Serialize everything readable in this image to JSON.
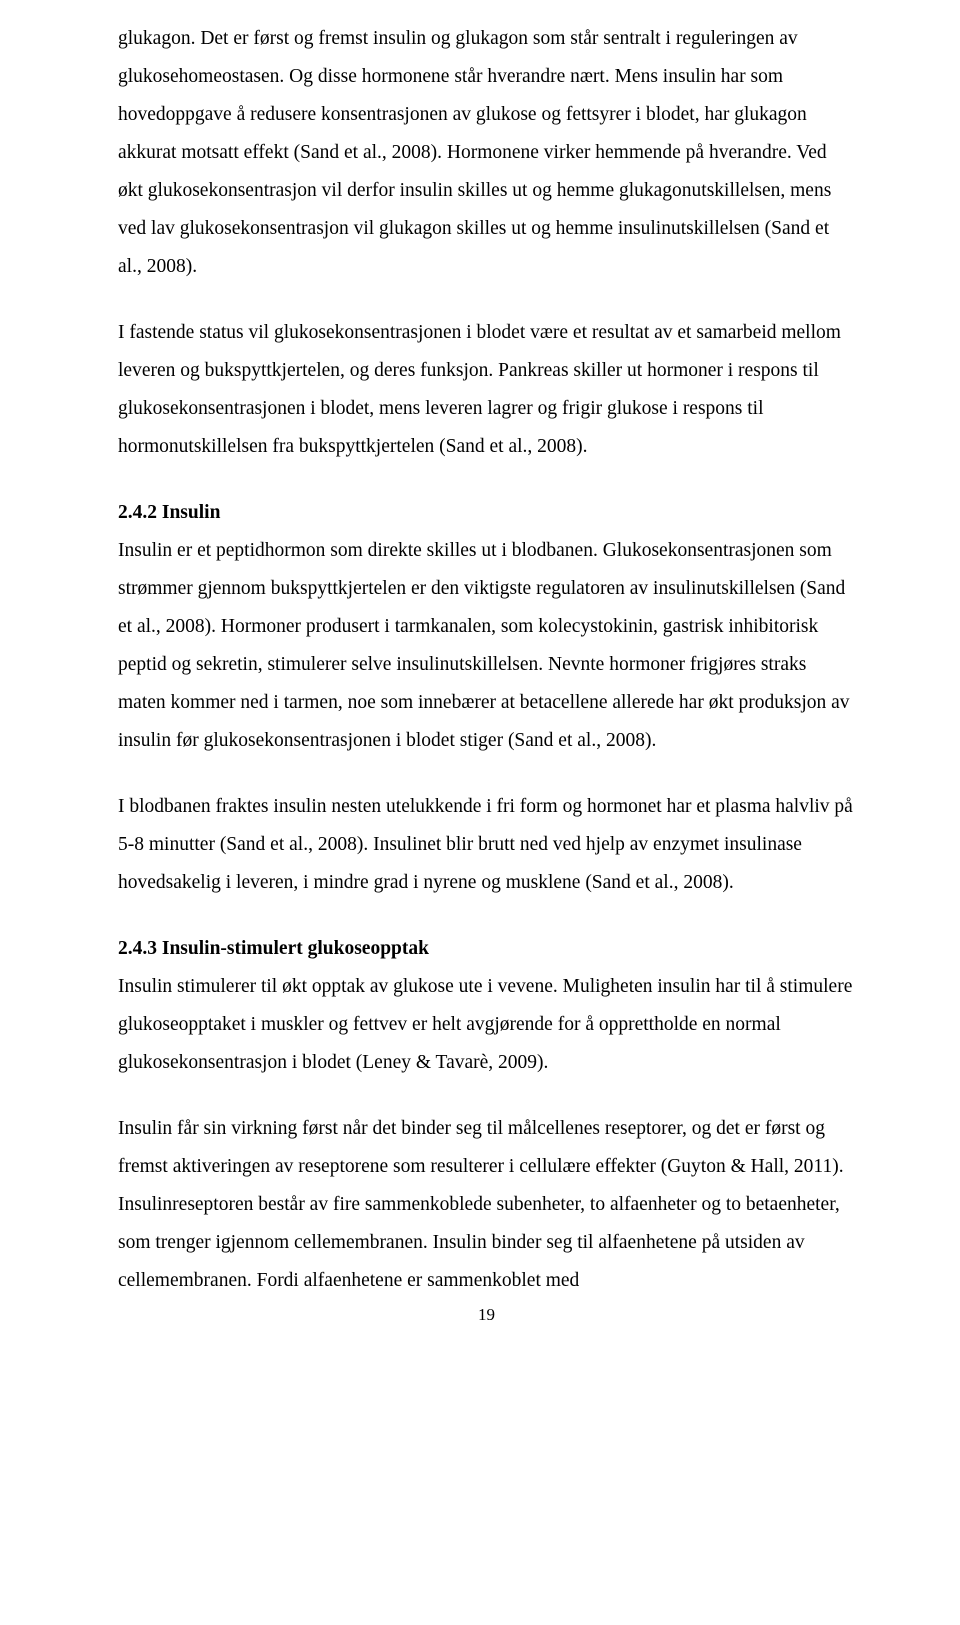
{
  "paragraphs": {
    "p1": "glukagon. Det er først og fremst insulin og glukagon som står sentralt i reguleringen av glukosehomeostasen. Og disse hormonene står hverandre nært. Mens insulin har som hovedoppgave å redusere konsentrasjonen av glukose og fettsyrer i blodet, har glukagon akkurat motsatt effekt (Sand et al., 2008). Hormonene virker hemmende på hverandre. Ved økt glukosekonsentrasjon vil derfor insulin skilles ut og hemme glukagonutskillelsen, mens ved lav glukosekonsentrasjon vil glukagon skilles ut og hemme insulinutskillelsen (Sand et al., 2008).",
    "p2": "I fastende status vil glukosekonsentrasjonen i blodet være et resultat av et samarbeid mellom leveren og bukspyttkjertelen, og deres funksjon. Pankreas skiller ut hormoner i respons til glukosekonsentrasjonen i blodet, mens leveren lagrer og frigir glukose i respons til hormonutskillelsen fra bukspyttkjertelen (Sand et al., 2008).",
    "h1": "2.4.2 Insulin",
    "p3": "Insulin er et peptidhormon som direkte skilles ut i blodbanen. Glukosekonsentrasjonen som strømmer gjennom bukspyttkjertelen er den viktigste regulatoren av insulinutskillelsen (Sand et al., 2008). Hormoner produsert i tarmkanalen, som kolecystokinin, gastrisk inhibitorisk peptid og sekretin, stimulerer selve insulinutskillelsen. Nevnte hormoner frigjøres straks maten kommer ned i tarmen, noe som innebærer at betacellene allerede har økt produksjon av insulin før glukosekonsentrasjonen i blodet stiger (Sand et al., 2008).",
    "p4": "I blodbanen fraktes insulin nesten utelukkende i fri form og hormonet har et plasma halvliv på 5-8 minutter (Sand et al., 2008). Insulinet blir brutt ned ved hjelp av enzymet insulinase hovedsakelig i leveren, i mindre grad i nyrene og musklene (Sand et al., 2008).",
    "h2": "2.4.3 Insulin-stimulert glukoseopptak",
    "p5": "Insulin stimulerer til økt opptak av glukose ute i vevene. Muligheten insulin har til å stimulere glukoseopptaket i muskler og fettvev er helt avgjørende for å opprettholde en normal glukosekonsentrasjon i blodet (Leney & Tavarè, 2009).",
    "p6": "Insulin får sin virkning først når det binder seg til målcellenes reseptorer, og det er først og fremst aktiveringen av reseptorene som resulterer i cellulære effekter (Guyton & Hall, 2011). Insulinreseptoren består av fire sammenkoblede subenheter, to alfaenheter og to betaenheter, som trenger igjennom cellemembranen. Insulin binder seg til alfaenhetene på utsiden av cellemembranen. Fordi alfaenhetene er sammenkoblet med"
  },
  "pageNumber": "19"
}
